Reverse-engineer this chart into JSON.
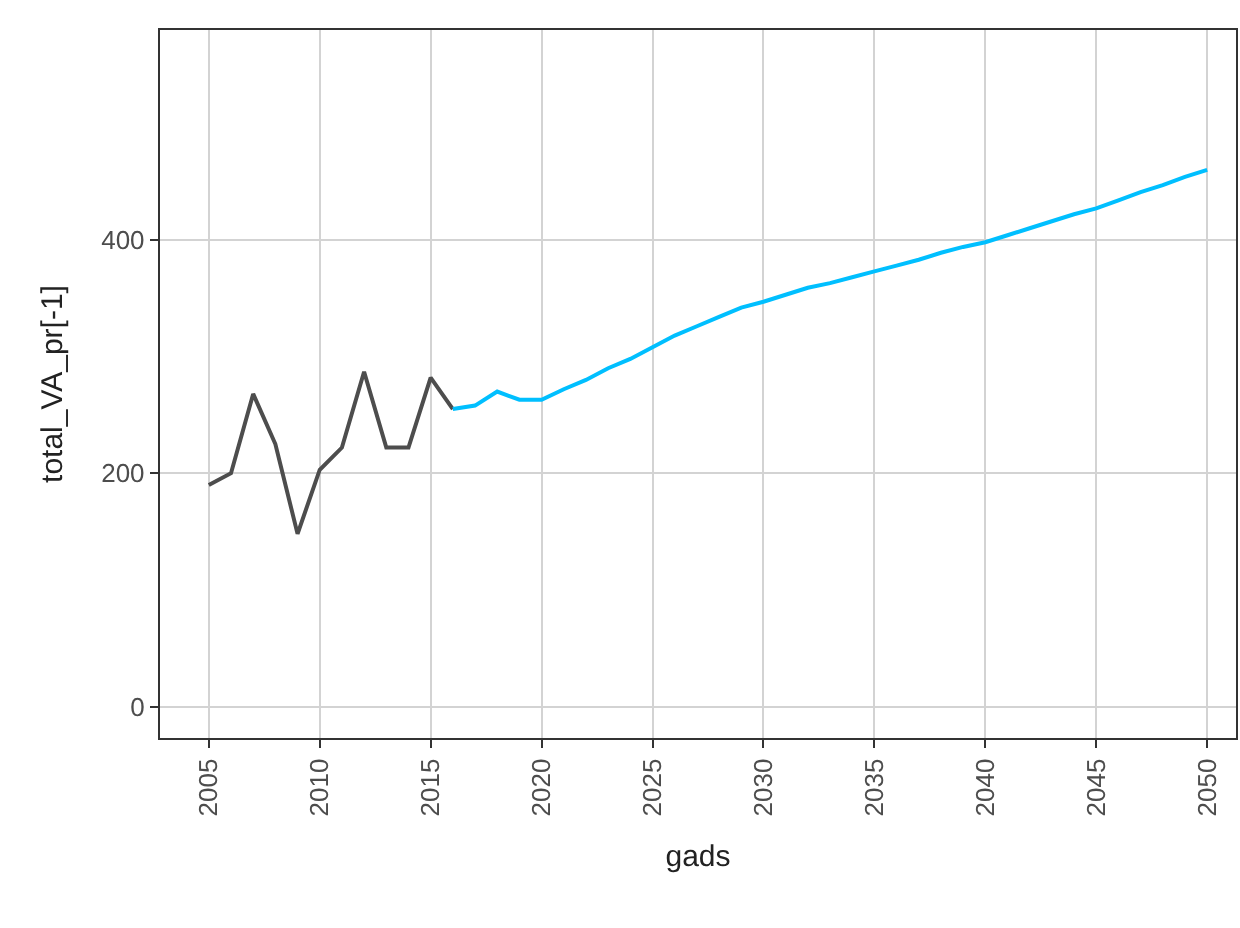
{
  "chart_data": {
    "type": "line",
    "xlabel": "gads",
    "ylabel": "total_VA_pr[-1]",
    "xlim": [
      2002.8,
      2051.3
    ],
    "ylim": [
      -27,
      580
    ],
    "xticks": [
      2005,
      2010,
      2015,
      2020,
      2025,
      2030,
      2035,
      2040,
      2045,
      2050
    ],
    "yticks": [
      0,
      200,
      400
    ],
    "grid": true,
    "marker": "none",
    "line_style": "solid",
    "series": [
      {
        "color": "#4d4d4d",
        "x": [
          2005,
          2006,
          2007,
          2008,
          2009,
          2010,
          2011,
          2012,
          2013,
          2014,
          2015,
          2016
        ],
        "values": [
          190,
          200,
          268,
          225,
          148,
          203,
          222,
          287,
          222,
          222,
          282,
          255
        ]
      },
      {
        "color": "#00bfff",
        "x": [
          2016,
          2017,
          2018,
          2019,
          2020,
          2021,
          2022,
          2023,
          2024,
          2025,
          2026,
          2027,
          2028,
          2029,
          2030,
          2031,
          2032,
          2033,
          2034,
          2035,
          2036,
          2037,
          2038,
          2039,
          2040,
          2041,
          2042,
          2043,
          2044,
          2045,
          2046,
          2047,
          2048,
          2049,
          2050
        ],
        "values": [
          255,
          258,
          270,
          263,
          263,
          272,
          280,
          290,
          298,
          308,
          318,
          326,
          334,
          342,
          347,
          353,
          359,
          363,
          368,
          373,
          378,
          383,
          389,
          394,
          398,
          404,
          410,
          416,
          422,
          427,
          434,
          441,
          447,
          454,
          460
        ]
      }
    ]
  }
}
